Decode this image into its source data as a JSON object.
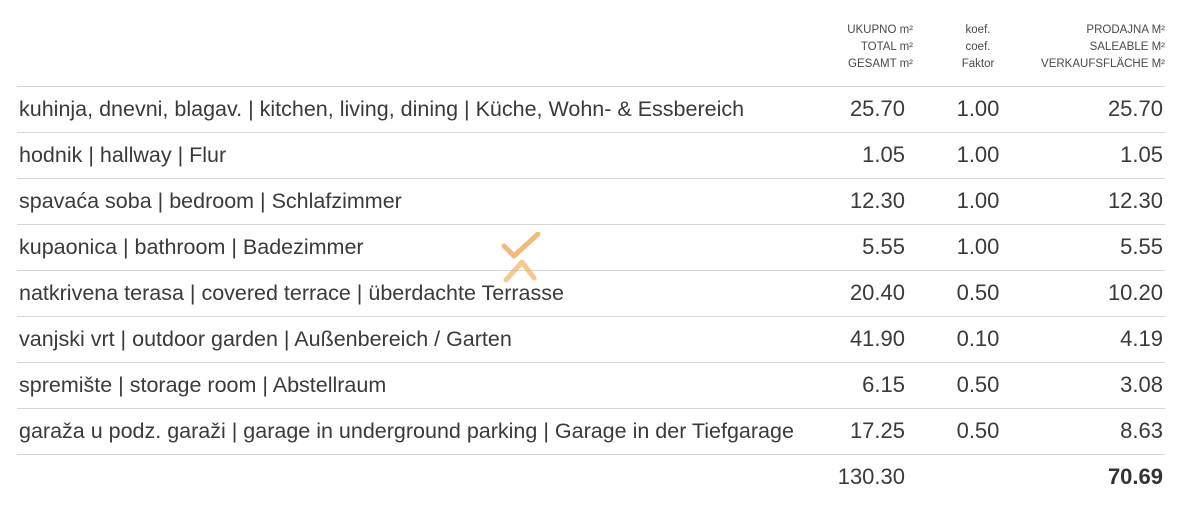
{
  "header": {
    "total_line1": "UKUPNO m²",
    "total_line2": "TOTAL m²",
    "total_line3": "GESAMT m²",
    "coef_line1": "koef.",
    "coef_line2": "coef.",
    "coef_line3": "Faktor",
    "sale_line1": "PRODAJNA M²",
    "sale_line2": "SALEABLE M²",
    "sale_line3": "VERKAUFSFLÄCHE M²"
  },
  "rows": [
    {
      "name": "kuhinja, dnevni, blagav. | kitchen, living, dining | Küche, Wohn- & Essbereich",
      "total": "25.70",
      "coef": "1.00",
      "sale": "25.70"
    },
    {
      "name": "hodnik | hallway | Flur",
      "total": "1.05",
      "coef": "1.00",
      "sale": "1.05"
    },
    {
      "name": "spavaća soba | bedroom | Schlafzimmer",
      "total": "12.30",
      "coef": "1.00",
      "sale": "12.30"
    },
    {
      "name": "kupaonica | bathroom | Badezimmer",
      "total": "5.55",
      "coef": "1.00",
      "sale": "5.55"
    },
    {
      "name": "natkrivena terasa | covered terrace | überdachte Terrasse",
      "total": "20.40",
      "coef": "0.50",
      "sale": "10.20"
    },
    {
      "name": "vanjski vrt | outdoor garden | Außenbereich / Garten",
      "total": "41.90",
      "coef": "0.10",
      "sale": "4.19"
    },
    {
      "name": "spremište | storage room | Abstellraum",
      "total": "6.15",
      "coef": "0.50",
      "sale": "3.08"
    },
    {
      "name": "garaža u podz. garaži | garage in underground parking | Garage in der Tiefgarage",
      "total": "17.25",
      "coef": "0.50",
      "sale": "8.63"
    }
  ],
  "totals": {
    "total": "130.30",
    "sale": "70.69"
  },
  "colors": {
    "watermark": "#f0a24a",
    "divider": "#d6d6d6",
    "text": "#3a3a3a"
  }
}
